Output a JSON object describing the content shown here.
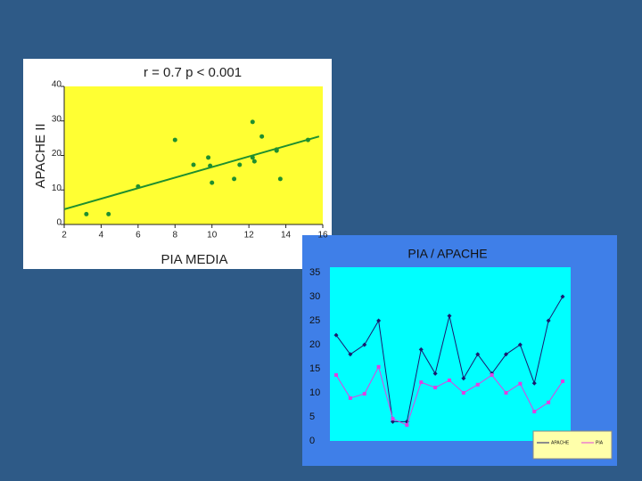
{
  "chart_data": [
    {
      "type": "scatter",
      "title": "r = 0.7 p < 0.001",
      "x_label": "PIA MEDIA",
      "y_label": "APACHE II",
      "x": [
        3.2,
        4.4,
        6,
        8,
        9,
        9.8,
        9.9,
        10,
        11.2,
        11.5,
        12.2,
        12.2,
        12.3,
        12.7,
        13.5,
        13.5,
        13.7,
        15.2
      ],
      "values": [
        3,
        3,
        11,
        24.5,
        17.3,
        19.4,
        17,
        12.1,
        13.2,
        17.3,
        29.7,
        19.4,
        18.3,
        25.5,
        21.4,
        21.7,
        13.2,
        24.5
      ],
      "color": "#1f8f2f",
      "trend_line": {
        "x": [
          2,
          15.8
        ],
        "values": [
          4.4,
          25.5
        ],
        "color": "#1f8f2f"
      },
      "xlim": [
        2,
        16
      ],
      "xticks": [
        2,
        4,
        6,
        8,
        10,
        12,
        14,
        16
      ],
      "ylim": [
        0,
        40
      ],
      "yticks": [
        0,
        10,
        20,
        30,
        40
      ],
      "grid": false
    },
    {
      "type": "line",
      "title": "PIA / APACHE",
      "categories": [
        null,
        null,
        null,
        null,
        null,
        null,
        null,
        null,
        null,
        null,
        null,
        null,
        null,
        null,
        null,
        null,
        null
      ],
      "series": [
        {
          "name": "APACHE",
          "color": "#1a1a6e",
          "values": [
            22,
            18,
            20,
            25,
            4,
            4,
            19,
            14,
            26,
            13,
            18,
            14,
            18,
            20,
            12,
            25,
            30
          ]
        },
        {
          "name": "PIA",
          "color": "#e040e0",
          "values": [
            13.7,
            8.9,
            9.8,
            15.4,
            4.6,
            3.3,
            12.2,
            11.1,
            12.6,
            10,
            11.7,
            13.7,
            10,
            11.9,
            6.1,
            8,
            12.4
          ]
        }
      ],
      "ylim": [
        0,
        35
      ],
      "yticks": [
        0,
        5,
        10,
        15,
        20,
        25,
        30,
        35
      ],
      "grid": false,
      "legend": "lower right"
    }
  ]
}
